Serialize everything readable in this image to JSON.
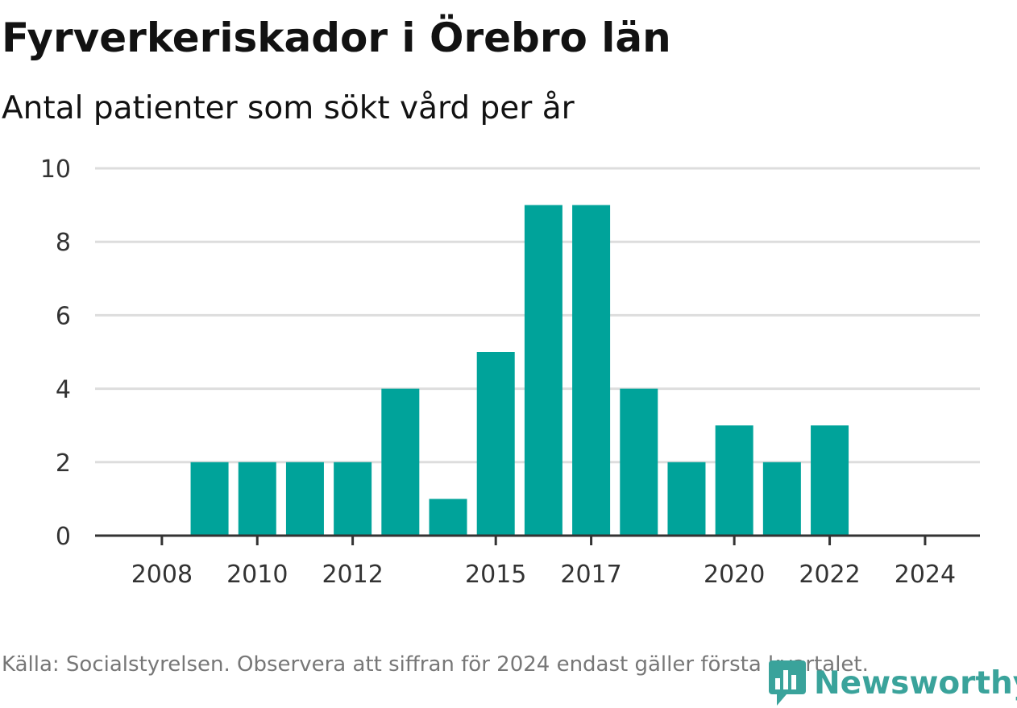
{
  "header": {
    "title": "Fyrverkeriskador i Örebro län",
    "subtitle": "Antal patienter som sökt vård per år"
  },
  "footer": {
    "source": "Källa: Socialstyrelsen. Observera att siffran för 2024 endast gäller första kvartalet."
  },
  "logo": {
    "text": "Newsworthy",
    "icon": "newsworthy-chart-icon"
  },
  "chart_data": {
    "type": "bar",
    "title": "Fyrverkeriskador i Örebro län",
    "subtitle": "Antal patienter som sökt vård per år",
    "x": [
      2008,
      2009,
      2010,
      2011,
      2012,
      2013,
      2014,
      2015,
      2016,
      2017,
      2018,
      2019,
      2020,
      2021,
      2022,
      2023,
      2024
    ],
    "values": [
      0,
      2,
      2,
      2,
      2,
      4,
      1,
      5,
      9,
      9,
      4,
      2,
      3,
      2,
      3,
      0,
      0
    ],
    "xticks": [
      "2008",
      "2010",
      "2012",
      "2015",
      "2017",
      "2020",
      "2022",
      "2024"
    ],
    "yticks": [
      "0",
      "2",
      "4",
      "6",
      "8",
      "10"
    ],
    "ylim": [
      0,
      10
    ],
    "xlabel": "",
    "ylabel": "",
    "grid": true,
    "colors": {
      "bar": "#00a39a",
      "grid": "#dddddd",
      "axis": "#333333"
    }
  }
}
